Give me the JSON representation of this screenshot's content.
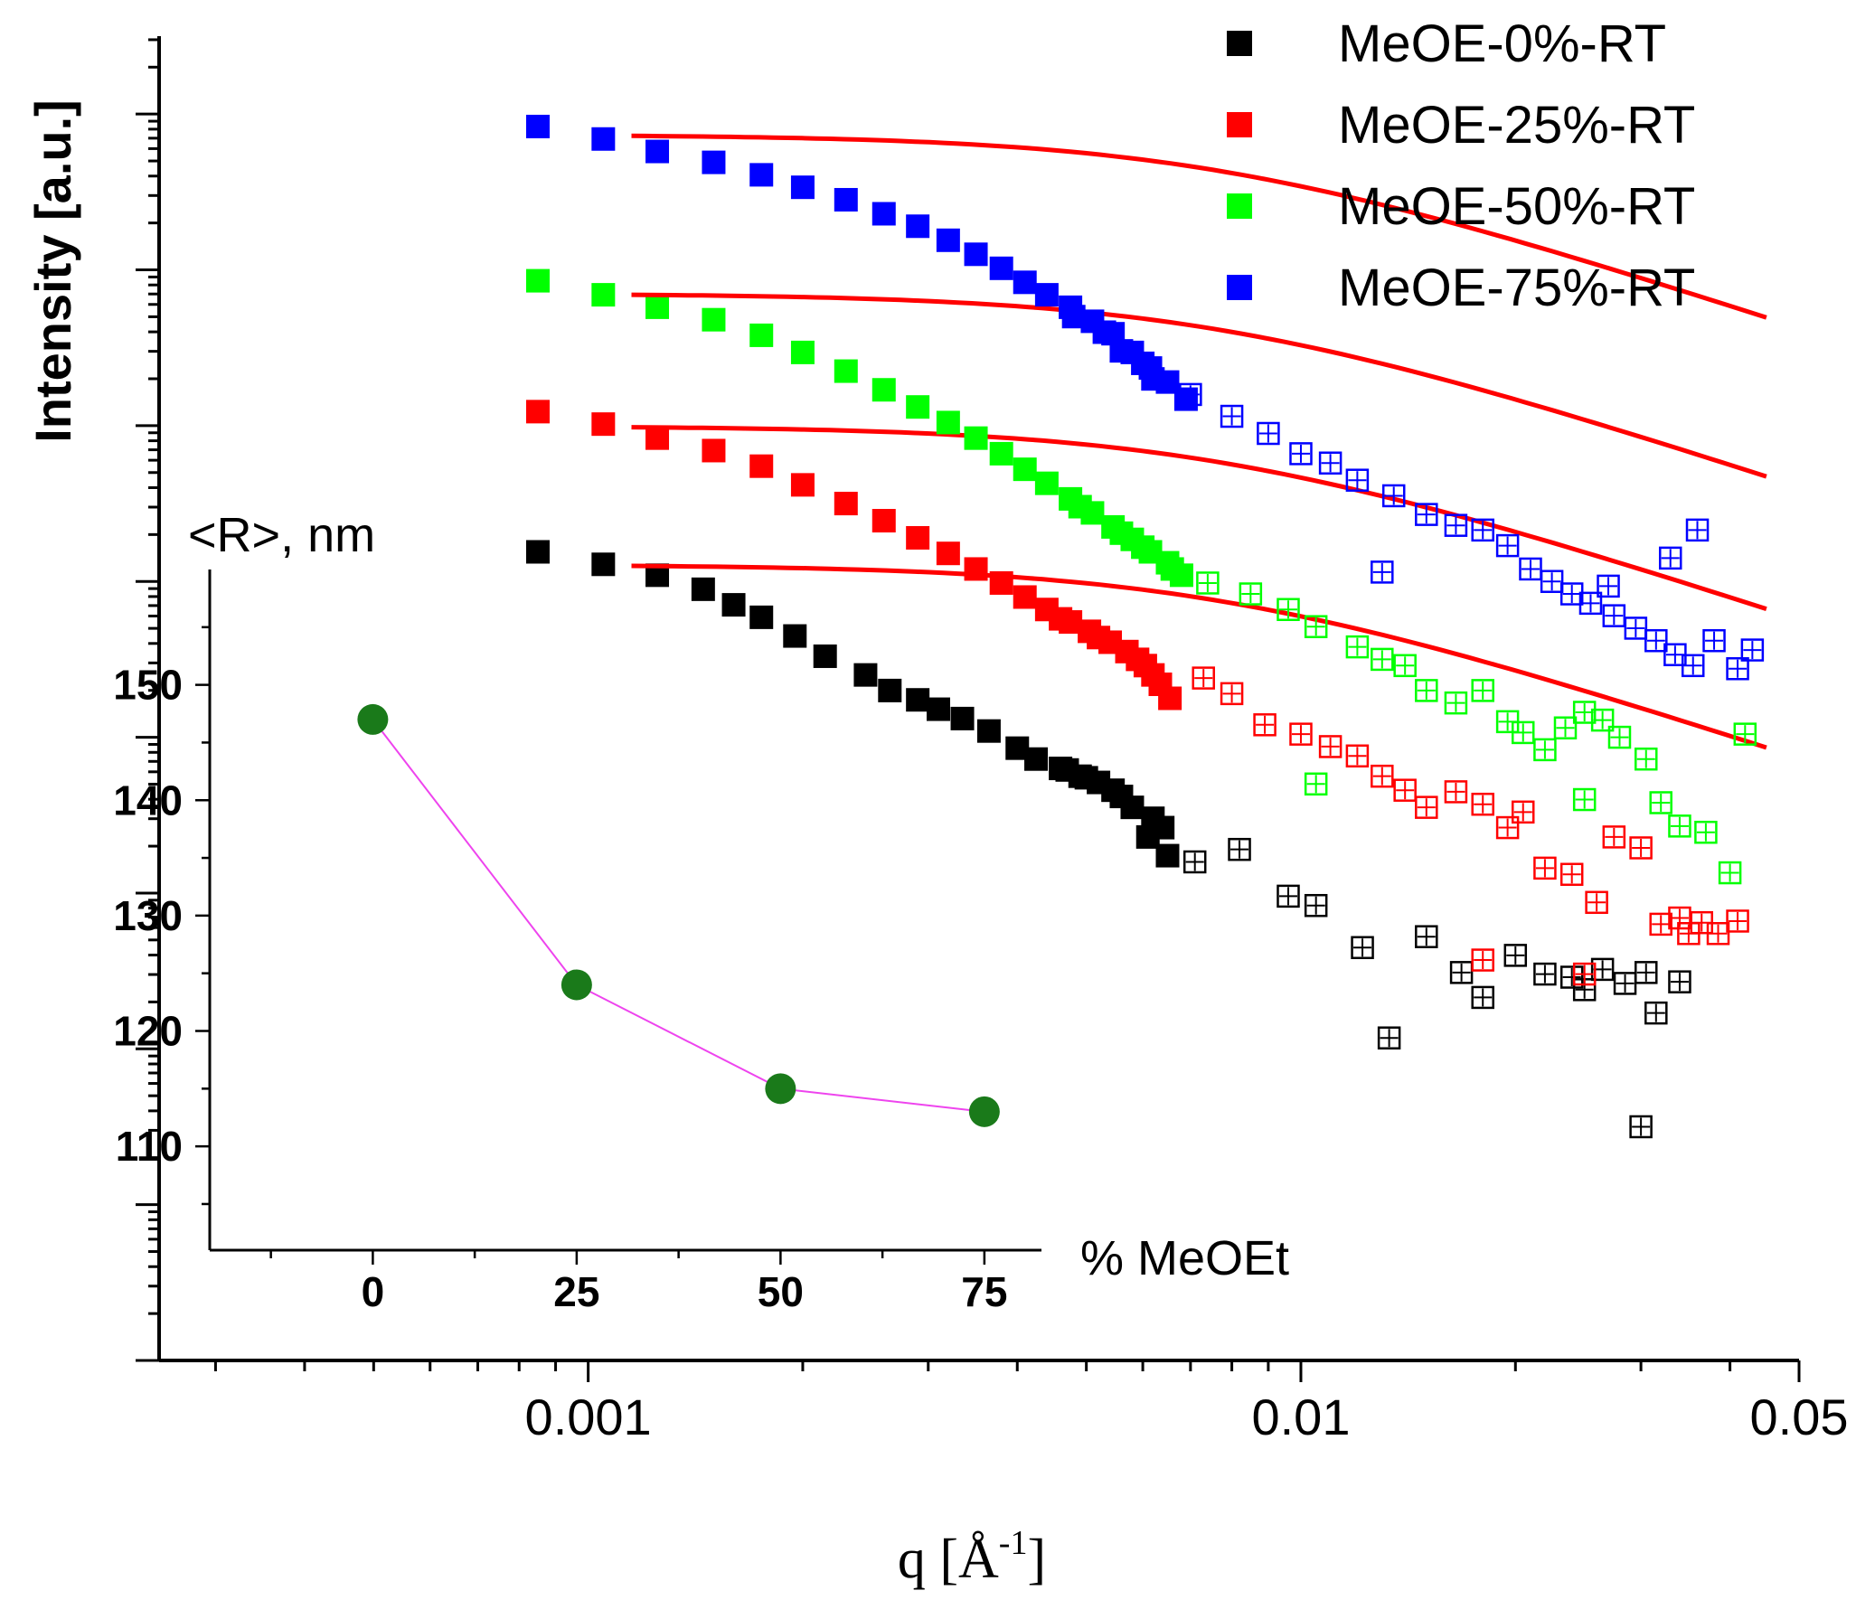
{
  "chart_data": [
    {
      "type": "scatter",
      "title": "",
      "xlabel": "q [Å-1]",
      "xlabel_parts": {
        "main": "q [Å",
        "sup": "-1",
        "close": "]"
      },
      "ylabel": "Intensity   [a.u.]",
      "xscale": "log",
      "yscale": "log",
      "xlim": [
        0.00025,
        0.05
      ],
      "ylim_decades": [
        0,
        8.5
      ],
      "xticks": [
        {
          "value": 0.001,
          "label": "0.001"
        },
        {
          "value": 0.01,
          "label": "0.01"
        },
        {
          "value": 0.05,
          "label": "0.05"
        }
      ],
      "legend_position": "top-right",
      "series": [
        {
          "name": "MeOE-0%-RT",
          "color": "#000000",
          "filled": [
            [
              0.00085,
              5.19
            ],
            [
              0.00105,
              5.11
            ],
            [
              0.00125,
              5.04
            ],
            [
              0.00145,
              4.95
            ],
            [
              0.0016,
              4.85
            ],
            [
              0.00175,
              4.77
            ],
            [
              0.00195,
              4.65
            ],
            [
              0.00215,
              4.52
            ],
            [
              0.00245,
              4.4
            ],
            [
              0.00265,
              4.3
            ],
            [
              0.0029,
              4.24
            ],
            [
              0.0031,
              4.18
            ],
            [
              0.00335,
              4.12
            ],
            [
              0.00365,
              4.04
            ],
            [
              0.004,
              3.93
            ],
            [
              0.00425,
              3.86
            ],
            [
              0.0046,
              3.8
            ],
            [
              0.0049,
              3.75
            ],
            [
              0.0052,
              3.71
            ],
            [
              0.00545,
              3.66
            ],
            [
              0.0058,
              3.55
            ],
            [
              0.0061,
              3.36
            ],
            [
              0.0065,
              3.24
            ],
            [
              0.0056,
              3.62
            ],
            [
              0.005,
              3.74
            ],
            [
              0.0047,
              3.79
            ],
            [
              0.0062,
              3.48
            ],
            [
              0.0064,
              3.42
            ]
          ],
          "open": [
            [
              0.0071,
              3.2
            ],
            [
              0.0082,
              3.28
            ],
            [
              0.0096,
              2.98
            ],
            [
              0.0105,
              2.92
            ],
            [
              0.0122,
              2.65
            ],
            [
              0.0133,
              2.07
            ],
            [
              0.015,
              2.72
            ],
            [
              0.0168,
              2.49
            ],
            [
              0.018,
              2.33
            ],
            [
              0.02,
              2.6
            ],
            [
              0.022,
              2.48
            ],
            [
              0.024,
              2.46
            ],
            [
              0.025,
              2.38
            ],
            [
              0.0265,
              2.51
            ],
            [
              0.0285,
              2.42
            ],
            [
              0.0305,
              2.49
            ],
            [
              0.0315,
              2.23
            ],
            [
              0.034,
              2.43
            ],
            [
              0.03,
              1.5
            ]
          ],
          "fit_q": [
            0.00115,
            0.045
          ],
          "fit_start": 5.1
        },
        {
          "name": "MeOE-25%-RT",
          "color": "#ff0000",
          "filled": [
            [
              0.00085,
              6.09
            ],
            [
              0.00105,
              6.01
            ],
            [
              0.00125,
              5.92
            ],
            [
              0.0015,
              5.84
            ],
            [
              0.00175,
              5.74
            ],
            [
              0.002,
              5.62
            ],
            [
              0.0023,
              5.5
            ],
            [
              0.0026,
              5.39
            ],
            [
              0.0029,
              5.28
            ],
            [
              0.0032,
              5.18
            ],
            [
              0.0035,
              5.08
            ],
            [
              0.0038,
              4.99
            ],
            [
              0.0041,
              4.9
            ],
            [
              0.0044,
              4.82
            ],
            [
              0.00475,
              4.74
            ],
            [
              0.00505,
              4.68
            ],
            [
              0.0054,
              4.61
            ],
            [
              0.0057,
              4.55
            ],
            [
              0.00605,
              4.46
            ],
            [
              0.00635,
              4.34
            ],
            [
              0.00655,
              4.25
            ],
            [
              0.0052,
              4.64
            ],
            [
              0.0059,
              4.5
            ],
            [
              0.0046,
              4.76
            ],
            [
              0.0062,
              4.4
            ]
          ],
          "open": [
            [
              0.0073,
              4.38
            ],
            [
              0.008,
              4.28
            ],
            [
              0.0089,
              4.08
            ],
            [
              0.01,
              4.02
            ],
            [
              0.011,
              3.94
            ],
            [
              0.012,
              3.88
            ],
            [
              0.013,
              3.75
            ],
            [
              0.014,
              3.66
            ],
            [
              0.015,
              3.55
            ],
            [
              0.0165,
              3.65
            ],
            [
              0.018,
              3.57
            ],
            [
              0.0195,
              3.42
            ],
            [
              0.0205,
              3.52
            ],
            [
              0.022,
              3.16
            ],
            [
              0.024,
              3.12
            ],
            [
              0.026,
              2.94
            ],
            [
              0.0275,
              3.36
            ],
            [
              0.03,
              3.29
            ],
            [
              0.032,
              2.8
            ],
            [
              0.034,
              2.84
            ],
            [
              0.035,
              2.74
            ],
            [
              0.0365,
              2.81
            ],
            [
              0.0385,
              2.74
            ],
            [
              0.041,
              2.82
            ],
            [
              0.018,
              2.57
            ],
            [
              0.025,
              2.48
            ]
          ],
          "fit_q": [
            0.00115,
            0.045
          ],
          "fit_start": 5.99
        },
        {
          "name": "MeOE-50%-RT",
          "color": "#00ff00",
          "filled": [
            [
              0.00085,
              6.93
            ],
            [
              0.00105,
              6.84
            ],
            [
              0.00125,
              6.76
            ],
            [
              0.0015,
              6.68
            ],
            [
              0.00175,
              6.58
            ],
            [
              0.002,
              6.47
            ],
            [
              0.0023,
              6.35
            ],
            [
              0.0026,
              6.23
            ],
            [
              0.0029,
              6.12
            ],
            [
              0.0032,
              6.02
            ],
            [
              0.0035,
              5.92
            ],
            [
              0.0038,
              5.82
            ],
            [
              0.0041,
              5.72
            ],
            [
              0.0044,
              5.63
            ],
            [
              0.00475,
              5.53
            ],
            [
              0.0051,
              5.44
            ],
            [
              0.00545,
              5.35
            ],
            [
              0.0058,
              5.27
            ],
            [
              0.00615,
              5.19
            ],
            [
              0.0065,
              5.12
            ],
            [
              0.0068,
              5.04
            ],
            [
              0.0056,
              5.31
            ],
            [
              0.006,
              5.22
            ],
            [
              0.0049,
              5.48
            ],
            [
              0.0066,
              5.08
            ]
          ],
          "open": [
            [
              0.0074,
              4.99
            ],
            [
              0.0085,
              4.92
            ],
            [
              0.0096,
              4.82
            ],
            [
              0.0105,
              4.71
            ],
            [
              0.012,
              4.58
            ],
            [
              0.013,
              4.5
            ],
            [
              0.014,
              4.46
            ],
            [
              0.015,
              4.3
            ],
            [
              0.0165,
              4.22
            ],
            [
              0.018,
              4.3
            ],
            [
              0.0195,
              4.1
            ],
            [
              0.0205,
              4.03
            ],
            [
              0.022,
              3.92
            ],
            [
              0.0235,
              4.06
            ],
            [
              0.025,
              4.16
            ],
            [
              0.0265,
              4.11
            ],
            [
              0.028,
              4.0
            ],
            [
              0.0305,
              3.86
            ],
            [
              0.032,
              3.58
            ],
            [
              0.034,
              3.43
            ],
            [
              0.037,
              3.39
            ],
            [
              0.04,
              3.13
            ],
            [
              0.042,
              4.02
            ],
            [
              0.0105,
              3.7
            ],
            [
              0.025,
              3.6
            ]
          ],
          "fit_q": [
            0.00115,
            0.045
          ],
          "fit_start": 6.84
        },
        {
          "name": "MeOE-75%-RT",
          "color": "#0000ff",
          "filled": [
            [
              0.00085,
              7.92
            ],
            [
              0.00105,
              7.84
            ],
            [
              0.00125,
              7.76
            ],
            [
              0.0015,
              7.69
            ],
            [
              0.00175,
              7.61
            ],
            [
              0.002,
              7.53
            ],
            [
              0.0023,
              7.45
            ],
            [
              0.0026,
              7.36
            ],
            [
              0.0029,
              7.28
            ],
            [
              0.0032,
              7.19
            ],
            [
              0.0035,
              7.1
            ],
            [
              0.0038,
              7.01
            ],
            [
              0.0041,
              6.92
            ],
            [
              0.0044,
              6.84
            ],
            [
              0.00475,
              6.76
            ],
            [
              0.0051,
              6.67
            ],
            [
              0.00545,
              6.59
            ],
            [
              0.0058,
              6.47
            ],
            [
              0.00615,
              6.37
            ],
            [
              0.0065,
              6.28
            ],
            [
              0.0069,
              6.17
            ],
            [
              0.0056,
              6.48
            ],
            [
              0.006,
              6.4
            ],
            [
              0.0048,
              6.7
            ],
            [
              0.0053,
              6.6
            ],
            [
              0.0062,
              6.3
            ]
          ],
          "open": [
            [
              0.007,
              6.2
            ],
            [
              0.008,
              6.06
            ],
            [
              0.009,
              5.95
            ],
            [
              0.01,
              5.82
            ],
            [
              0.011,
              5.76
            ],
            [
              0.012,
              5.65
            ],
            [
              0.0135,
              5.55
            ],
            [
              0.015,
              5.43
            ],
            [
              0.0165,
              5.36
            ],
            [
              0.018,
              5.33
            ],
            [
              0.0195,
              5.23
            ],
            [
              0.021,
              5.08
            ],
            [
              0.0225,
              5.0
            ],
            [
              0.024,
              4.92
            ],
            [
              0.0255,
              4.86
            ],
            [
              0.0275,
              4.78
            ],
            [
              0.0295,
              4.7
            ],
            [
              0.0315,
              4.62
            ],
            [
              0.0335,
              4.53
            ],
            [
              0.0355,
              4.46
            ],
            [
              0.038,
              4.62
            ],
            [
              0.041,
              4.44
            ],
            [
              0.043,
              4.56
            ],
            [
              0.013,
              5.06
            ],
            [
              0.027,
              4.97
            ],
            [
              0.033,
              5.15
            ],
            [
              0.036,
              5.33
            ]
          ],
          "fit_q": [
            0.00115,
            0.045
          ],
          "fit_start": 7.86
        }
      ]
    },
    {
      "type": "line",
      "title": "",
      "ylabel": "<R>, nm",
      "xlabel": "% MeOEt",
      "x": [
        0,
        25,
        50,
        75
      ],
      "y": [
        147,
        124,
        115,
        113
      ],
      "xlim": [
        -20,
        82
      ],
      "ylim": [
        101,
        160
      ],
      "xticks": [
        "0",
        "25",
        "50",
        "75"
      ],
      "yticks": [
        "110",
        "120",
        "130",
        "140",
        "150"
      ],
      "marker_color": "#1a7a1a",
      "line_color": "#ee44ee"
    }
  ]
}
